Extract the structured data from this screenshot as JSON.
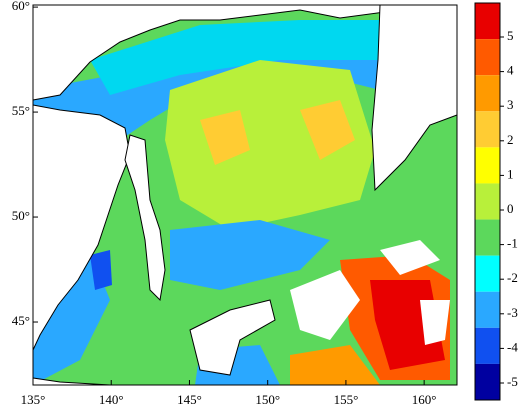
{
  "map": {
    "xaxis": {
      "lim": [
        135,
        162.1
      ],
      "ticks": [
        {
          "value": 135,
          "label": "135°"
        },
        {
          "value": 140,
          "label": "140°"
        },
        {
          "value": 145,
          "label": "145°"
        },
        {
          "value": 150,
          "label": "150°"
        },
        {
          "value": 155,
          "label": "155°"
        },
        {
          "value": 160,
          "label": "160°"
        }
      ]
    },
    "yaxis": {
      "lim": [
        42,
        60.1
      ],
      "ticks": [
        {
          "value": 45,
          "label": "45°"
        },
        {
          "value": 50,
          "label": "50°"
        },
        {
          "value": 55,
          "label": "55°"
        },
        {
          "value": 60,
          "label": "60°"
        }
      ]
    }
  },
  "colorbar": {
    "ticks": [
      5,
      4,
      3,
      2,
      1,
      0,
      -1,
      -2,
      -3,
      -4,
      -5
    ],
    "colors": [
      "#e80000",
      "#ff5a00",
      "#ff9a00",
      "#ffcc33",
      "#ffff00",
      "#b8f03a",
      "#5cd85c",
      "#00ffff",
      "#2aa8ff",
      "#1050f0",
      "#0000a0"
    ]
  }
}
